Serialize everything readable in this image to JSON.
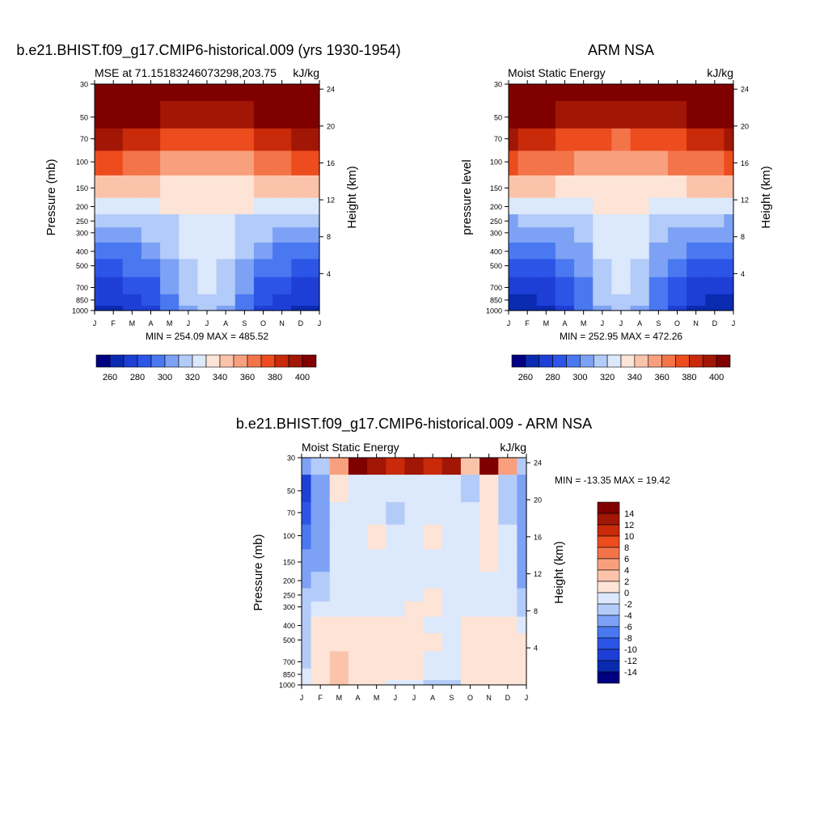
{
  "chart_data": [
    {
      "type": "heatmap",
      "id": "model",
      "main_title": "b.e21.BHIST.f09_g17.CMIP6-historical.009 (yrs 1930-1954)",
      "left_subtitle": "MSE at 71.15183246073298,203.75",
      "right_subtitle": "kJ/kg",
      "ylabel": "Pressure (mb)",
      "ylabel_right": "Height (km)",
      "x_ticks": [
        "J",
        "F",
        "M",
        "A",
        "M",
        "J",
        "J",
        "A",
        "S",
        "O",
        "N",
        "D",
        "J"
      ],
      "y_ticks": [
        "30",
        "50",
        "70",
        "100",
        "150",
        "200",
        "250",
        "300",
        "400",
        "500",
        "700",
        "850",
        "1000"
      ],
      "height_ticks": [
        "24",
        "20",
        "16",
        "12",
        "8",
        "4"
      ],
      "stats": "MIN = 254.09 MAX = 485.52",
      "levels": [
        260,
        270,
        280,
        290,
        300,
        310,
        320,
        330,
        340,
        350,
        360,
        370,
        380,
        390,
        400
      ],
      "colorbar_labels": [
        "260",
        "280",
        "300",
        "320",
        "340",
        "360",
        "380",
        "400"
      ],
      "months": [
        "Jan",
        "Feb",
        "Mar",
        "Apr",
        "May",
        "Jun",
        "Jul",
        "Aug",
        "Sep",
        "Oct",
        "Nov",
        "Dec",
        "Jan"
      ],
      "pressure": [
        1000,
        850,
        700,
        500,
        400,
        300,
        250,
        200,
        150,
        100,
        70,
        50,
        30
      ],
      "values": [
        [
          266,
          268,
          270,
          278,
          290,
          305,
          312,
          305,
          290,
          278,
          270,
          267,
          266
        ],
        [
          270,
          272,
          274,
          282,
          295,
          310,
          318,
          310,
          295,
          282,
          274,
          271,
          270
        ],
        [
          275,
          277,
          280,
          288,
          300,
          315,
          322,
          315,
          300,
          288,
          280,
          276,
          275
        ],
        [
          285,
          287,
          290,
          297,
          306,
          318,
          326,
          318,
          306,
          297,
          290,
          286,
          285
        ],
        [
          292,
          294,
          296,
          302,
          310,
          320,
          328,
          320,
          310,
          302,
          296,
          293,
          292
        ],
        [
          302,
          304,
          306,
          310,
          315,
          322,
          328,
          322,
          315,
          310,
          306,
          303,
          302
        ],
        [
          310,
          311,
          313,
          316,
          319,
          323,
          326,
          323,
          319,
          316,
          313,
          311,
          310
        ],
        [
          325,
          326,
          327,
          328,
          330,
          331,
          332,
          331,
          330,
          328,
          327,
          326,
          325
        ],
        [
          345,
          344,
          342,
          340,
          338,
          336,
          335,
          336,
          338,
          340,
          342,
          344,
          345
        ],
        [
          372,
          370,
          366,
          362,
          358,
          355,
          354,
          355,
          358,
          362,
          366,
          370,
          372
        ],
        [
          392,
          390,
          386,
          380,
          375,
          372,
          370,
          372,
          375,
          380,
          386,
          390,
          392
        ],
        [
          410,
          408,
          405,
          400,
          396,
          393,
          392,
          393,
          396,
          400,
          405,
          408,
          410
        ],
        [
          440,
          438,
          436,
          432,
          428,
          425,
          424,
          425,
          428,
          432,
          436,
          438,
          440
        ]
      ]
    },
    {
      "type": "heatmap",
      "id": "obs",
      "main_title": "ARM NSA",
      "left_subtitle": "Moist Static Energy",
      "right_subtitle": "kJ/kg",
      "ylabel": "pressure level",
      "ylabel_right": "Height (km)",
      "x_ticks": [
        "J",
        "F",
        "M",
        "A",
        "M",
        "J",
        "J",
        "A",
        "S",
        "O",
        "N",
        "D",
        "J"
      ],
      "y_ticks": [
        "30",
        "50",
        "70",
        "100",
        "150",
        "200",
        "250",
        "300",
        "400",
        "500",
        "700",
        "850",
        "1000"
      ],
      "height_ticks": [
        "24",
        "20",
        "16",
        "12",
        "8",
        "4"
      ],
      "stats": "MIN = 252.95 MAX = 472.26",
      "levels": [
        260,
        270,
        280,
        290,
        300,
        310,
        320,
        330,
        340,
        350,
        360,
        370,
        380,
        390,
        400
      ],
      "colorbar_labels": [
        "260",
        "280",
        "300",
        "320",
        "340",
        "360",
        "380",
        "400"
      ],
      "months": [
        "Jan",
        "Feb",
        "Mar",
        "Apr",
        "May",
        "Jun",
        "Jul",
        "Aug",
        "Sep",
        "Oct",
        "Nov",
        "Dec",
        "Jan"
      ],
      "pressure": [
        1000,
        850,
        700,
        500,
        400,
        300,
        250,
        200,
        150,
        100,
        70,
        50,
        30
      ],
      "values": [
        [
          262,
          264,
          268,
          276,
          290,
          306,
          314,
          306,
          290,
          276,
          268,
          263,
          262
        ],
        [
          266,
          268,
          272,
          280,
          294,
          310,
          318,
          310,
          294,
          280,
          272,
          267,
          266
        ],
        [
          272,
          274,
          278,
          286,
          298,
          314,
          322,
          314,
          298,
          286,
          278,
          273,
          272
        ],
        [
          282,
          284,
          288,
          295,
          305,
          318,
          326,
          318,
          305,
          295,
          288,
          283,
          282
        ],
        [
          290,
          292,
          295,
          301,
          309,
          320,
          328,
          320,
          309,
          301,
          295,
          291,
          290
        ],
        [
          300,
          302,
          305,
          309,
          314,
          321,
          327,
          321,
          314,
          309,
          305,
          301,
          300
        ],
        [
          309,
          310,
          312,
          315,
          318,
          322,
          325,
          322,
          318,
          315,
          312,
          310,
          309
        ],
        [
          324,
          325,
          326,
          327,
          329,
          330,
          331,
          330,
          329,
          327,
          326,
          325,
          324
        ],
        [
          344,
          343,
          341,
          339,
          337,
          335,
          334,
          335,
          337,
          339,
          341,
          343,
          344
        ],
        [
          371,
          369,
          365,
          361,
          357,
          354,
          353,
          354,
          357,
          361,
          365,
          369,
          371
        ],
        [
          391,
          389,
          385,
          379,
          374,
          371,
          369,
          371,
          374,
          379,
          385,
          389,
          391
        ],
        [
          409,
          407,
          404,
          399,
          395,
          392,
          391,
          392,
          395,
          399,
          404,
          407,
          409
        ],
        [
          438,
          436,
          434,
          430,
          426,
          423,
          422,
          423,
          426,
          430,
          434,
          436,
          438
        ]
      ]
    },
    {
      "type": "heatmap",
      "id": "diff",
      "main_title": "b.e21.BHIST.f09_g17.CMIP6-historical.009 - ARM NSA",
      "left_subtitle": "Moist Static Energy",
      "right_subtitle": "kJ/kg",
      "ylabel": "Pressure (mb)",
      "ylabel_right": "Height (km)",
      "x_ticks": [
        "J",
        "F",
        "M",
        "A",
        "M",
        "J",
        "J",
        "A",
        "S",
        "O",
        "N",
        "D",
        "J"
      ],
      "y_ticks": [
        "30",
        "50",
        "70",
        "100",
        "150",
        "200",
        "250",
        "300",
        "400",
        "500",
        "700",
        "850",
        "1000"
      ],
      "height_ticks": [
        "24",
        "20",
        "16",
        "12",
        "8",
        "4"
      ],
      "stats": "MIN = -13.35 MAX =  19.42",
      "levels": [
        -14,
        -12,
        -10,
        -8,
        -6,
        -4,
        -2,
        0,
        2,
        4,
        6,
        8,
        10,
        12,
        14
      ],
      "colorbar_labels": [
        "14",
        "12",
        "10",
        "8",
        "6",
        "4",
        "2",
        "0",
        "-2",
        "-4",
        "-6",
        "-8",
        "-10",
        "-12",
        "-14"
      ],
      "months": [
        "Jan",
        "Feb",
        "Mar",
        "Apr",
        "May",
        "Jun",
        "Jul",
        "Aug",
        "Sep",
        "Oct",
        "Nov",
        "Dec",
        "Jan"
      ],
      "pressure": [
        1000,
        850,
        700,
        500,
        400,
        300,
        250,
        200,
        150,
        100,
        70,
        50,
        30
      ],
      "values": [
        [
          -1,
          1,
          3,
          1,
          0,
          -1,
          -1,
          -4,
          -3,
          1,
          0,
          1,
          1
        ],
        [
          -2,
          1,
          2,
          1,
          0,
          1,
          0,
          -2,
          -1,
          1,
          0,
          1,
          1
        ],
        [
          -3,
          1,
          2,
          1,
          1,
          1,
          0,
          -1,
          -1,
          1,
          0,
          1,
          1
        ],
        [
          -3,
          1,
          1,
          0,
          1,
          1,
          0,
          0,
          -1,
          0,
          1,
          0,
          1
        ],
        [
          -4,
          0,
          1,
          0,
          1,
          1,
          0,
          -1,
          -1,
          0,
          1,
          0,
          -1
        ],
        [
          -4,
          -2,
          -1,
          -1,
          -1,
          -1,
          0,
          1,
          -1,
          -1,
          -1,
          -1,
          -3
        ],
        [
          -4,
          -3,
          -2,
          -2,
          -1,
          -1,
          -1,
          1,
          -1,
          -1,
          -1,
          -2,
          -4
        ],
        [
          -5,
          -4,
          -2,
          -1,
          -1,
          -1,
          -1,
          -1,
          -1,
          -1,
          -2,
          -2,
          -5
        ],
        [
          -6,
          -5,
          -1,
          -1,
          -1,
          -1,
          -1,
          -1,
          -1,
          -1,
          1,
          -2,
          -6
        ],
        [
          -7,
          -5,
          -1,
          -1,
          0,
          -1,
          -1,
          1,
          -1,
          -1,
          1,
          -2,
          -6
        ],
        [
          -9,
          -6,
          -1,
          -1,
          -1,
          -3,
          -1,
          -1,
          -1,
          -1,
          1,
          -3,
          -6
        ],
        [
          -11,
          -5,
          0,
          -1,
          -1,
          -1,
          -1,
          -1,
          -1,
          -3,
          1,
          -3,
          -6
        ],
        [
          -6,
          -3,
          4,
          16,
          12,
          10,
          13,
          11,
          12,
          3,
          18,
          4,
          -3
        ]
      ]
    }
  ]
}
